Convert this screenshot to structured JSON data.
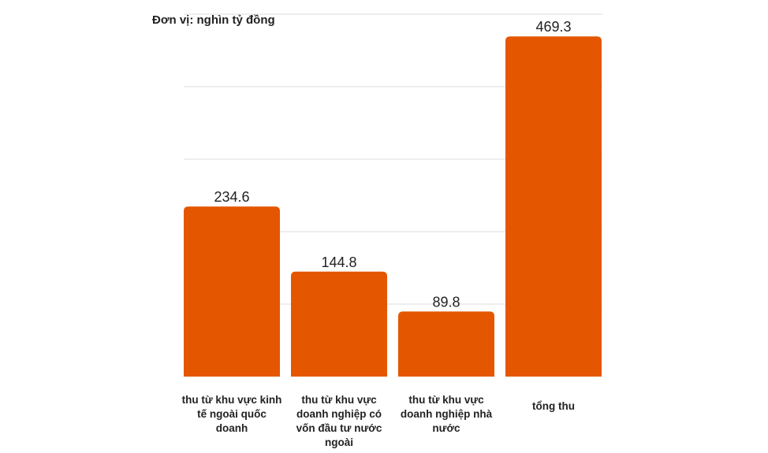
{
  "unit_label": "Đơn vị: nghìn tỷ đồng",
  "colors": {
    "bar": "#E45700",
    "grid": "#dcdcdc",
    "text": "#222222"
  },
  "chart_data": {
    "type": "bar",
    "title": "",
    "ylabel": "Đơn vị: nghìn tỷ đồng",
    "xlabel": "",
    "categories": [
      "thu từ khu vực kinh tế ngoài quốc doanh",
      "thu từ khu vực doanh nghiệp có vốn đầu tư nước ngoài",
      "thu từ khu vực doanh nghiệp nhà nước",
      "tổng thu"
    ],
    "values": [
      234.6,
      144.8,
      89.8,
      469.3
    ],
    "ylim": [
      0,
      500
    ],
    "grid": true,
    "data_labels": [
      "234.6",
      "144.8",
      "89.8",
      "469.3"
    ]
  }
}
